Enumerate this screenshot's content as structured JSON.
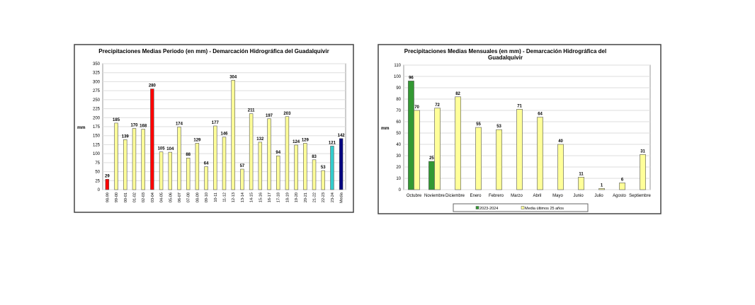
{
  "chart_data": [
    {
      "type": "bar",
      "title": "Precipitaciones Medias Periodo (en mm) - Demarcación Hidrográfica del Guadalquivir",
      "xlabel": "",
      "ylabel": "mm",
      "ylim": [
        0,
        350
      ],
      "ytick_step": 25,
      "grid": true,
      "categories": [
        "98-99",
        "99-00",
        "00-01",
        "01-02",
        "02-03",
        "03-04",
        "04-05",
        "05-06",
        "06-07",
        "07-08",
        "08-09",
        "09-10",
        "10-11",
        "11-12",
        "12-13",
        "13-14",
        "14-15",
        "15-16",
        "16-17",
        "17-18",
        "18-19",
        "19-20",
        "20-21",
        "21-22",
        "22-23",
        "23-24",
        "Media"
      ],
      "values": [
        29,
        185,
        139,
        170,
        168,
        280,
        105,
        104,
        174,
        88,
        129,
        64,
        177,
        146,
        304,
        57,
        211,
        132,
        197,
        94,
        203,
        124,
        129,
        83,
        53,
        121,
        142
      ],
      "colors": [
        "#ff0000",
        "#ffff99",
        "#ffff99",
        "#ffff99",
        "#ffff99",
        "#ff0000",
        "#ffff99",
        "#ffff99",
        "#ffff99",
        "#ffff99",
        "#ffff99",
        "#ffff99",
        "#ffff99",
        "#ffff99",
        "#ffff99",
        "#ffff99",
        "#ffff99",
        "#ffff99",
        "#ffff99",
        "#ffff99",
        "#ffff99",
        "#ffff99",
        "#ffff99",
        "#ffff99",
        "#ffff99",
        "#33cccc",
        "#000080"
      ]
    },
    {
      "type": "bar",
      "title": "Precipitaciones Medias Mensuales (en mm) - Demarcación Hidrográfica del Guadalquivir",
      "title_lines": [
        "Precipitaciones Medias Mensuales (en mm) - Demarcación Hidrográfica del",
        "Guadalquivir"
      ],
      "xlabel": "",
      "ylabel": "mm",
      "ylim": [
        0,
        110
      ],
      "ytick_step": 10,
      "grid": true,
      "legend": "bottom",
      "categories": [
        "Octubre",
        "Noviembre",
        "Diciembre",
        "Enero",
        "Febrero",
        "Marzo",
        "Abril",
        "Mayo",
        "Junio",
        "Julio",
        "Agosto",
        "Septiembre"
      ],
      "series": [
        {
          "name": "2023-2024",
          "color": "#339933",
          "values": [
            96,
            25,
            null,
            null,
            null,
            null,
            null,
            null,
            null,
            null,
            null,
            null
          ]
        },
        {
          "name": "Media últimos 25 años",
          "color": "#ffff99",
          "values": [
            70,
            72,
            82,
            55,
            53,
            71,
            64,
            40,
            11,
            1,
            6,
            31
          ]
        }
      ]
    }
  ]
}
